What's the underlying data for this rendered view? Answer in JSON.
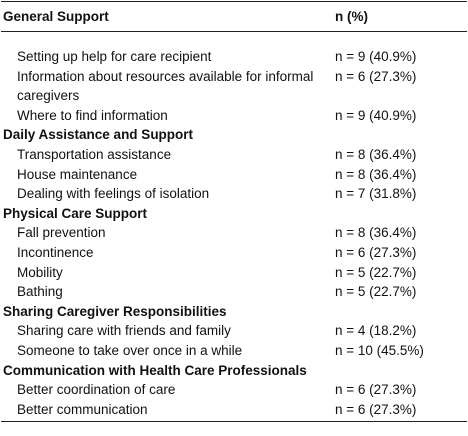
{
  "table": {
    "header": [
      "General Support",
      "n (%)"
    ],
    "sections": [
      {
        "rows": [
          [
            "Setting up help for care recipient",
            "n = 9 (40.9%)"
          ],
          [
            "Information about resources available for informal caregivers",
            "n = 6 (27.3%)"
          ],
          [
            "Where to find information",
            "n = 9 (40.9%)"
          ]
        ]
      },
      {
        "title": "Daily Assistance and Support",
        "rows": [
          [
            "Transportation assistance",
            "n = 8 (36.4%)"
          ],
          [
            "House maintenance",
            "n = 8 (36.4%)"
          ],
          [
            "Dealing with feelings of isolation",
            "n = 7 (31.8%)"
          ]
        ]
      },
      {
        "title": "Physical Care Support",
        "rows": [
          [
            "Fall prevention",
            "n = 8 (36.4%)"
          ],
          [
            "Incontinence",
            "n = 6 (27.3%)"
          ],
          [
            "Mobility",
            "n = 5 (22.7%)"
          ],
          [
            "Bathing",
            "n = 5 (22.7%)"
          ]
        ]
      },
      {
        "title": "Sharing Caregiver Responsibilities",
        "rows": [
          [
            "Sharing care with friends and family",
            "n = 4 (18.2%)"
          ],
          [
            "Someone to take over once in a while",
            "n = 10 (45.5%)"
          ]
        ]
      },
      {
        "title": "Communication with Health Care Professionals",
        "rows": [
          [
            "Better coordination of care",
            "n = 6 (27.3%)"
          ],
          [
            "Better communication",
            "n = 6 (27.3%)"
          ]
        ]
      }
    ]
  }
}
